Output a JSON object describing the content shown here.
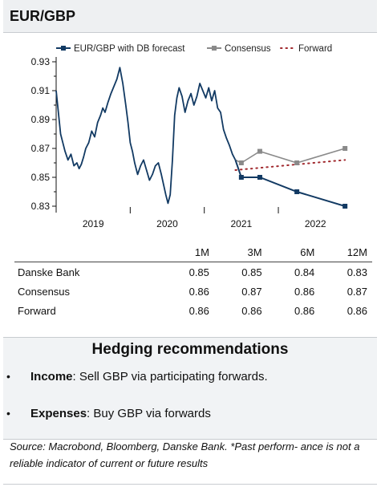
{
  "title": "EUR/GBP",
  "chart_data": {
    "type": "line",
    "legend_position": "top",
    "ylim": [
      0.83,
      0.93
    ],
    "yticks": [
      0.83,
      0.85,
      0.87,
      0.89,
      0.91,
      0.93
    ],
    "ytick_labels": [
      "0.83",
      "0.85",
      "0.87",
      "0.89",
      "0.91",
      "0.93"
    ],
    "xlim": [
      2018.0,
      2022.05
    ],
    "xtick_labels": [
      {
        "label": "2019",
        "x": 2018.5
      },
      {
        "label": "2020",
        "x": 2019.5
      },
      {
        "label": "2021",
        "x": 2020.5
      },
      {
        "label": "2022",
        "x": 2021.5
      }
    ],
    "year_dividers": [
      2019,
      2020,
      2021
    ],
    "grid": false,
    "series": [
      {
        "name": "EUR/GBP with DB forecast",
        "color": "#123a63",
        "history": {
          "x": [
            2018.0,
            2018.03,
            2018.06,
            2018.09,
            2018.12,
            2018.16,
            2018.2,
            2018.24,
            2018.28,
            2018.31,
            2018.34,
            2018.37,
            2018.4,
            2018.44,
            2018.48,
            2018.52,
            2018.56,
            2018.6,
            2018.63,
            2018.66,
            2018.7,
            2018.74,
            2018.78,
            2018.82,
            2018.86,
            2018.9,
            2018.94,
            2018.97,
            2019.0,
            2019.03,
            2019.06,
            2019.1,
            2019.14,
            2019.18,
            2019.22,
            2019.26,
            2019.3,
            2019.34,
            2019.38,
            2019.42,
            2019.45,
            2019.48,
            2019.51,
            2019.54,
            2019.57,
            2019.6,
            2019.63,
            2019.66,
            2019.7,
            2019.74,
            2019.78,
            2019.82,
            2019.86,
            2019.9,
            2019.94,
            2019.98,
            2020.02,
            2020.06,
            2020.1,
            2020.14,
            2020.18,
            2020.22,
            2020.26,
            2020.3,
            2020.34,
            2020.38,
            2020.42
          ],
          "y": [
            0.91,
            0.895,
            0.88,
            0.874,
            0.868,
            0.862,
            0.866,
            0.858,
            0.86,
            0.856,
            0.859,
            0.864,
            0.87,
            0.874,
            0.882,
            0.878,
            0.888,
            0.893,
            0.898,
            0.895,
            0.902,
            0.908,
            0.913,
            0.918,
            0.926,
            0.915,
            0.9,
            0.888,
            0.874,
            0.868,
            0.86,
            0.852,
            0.858,
            0.862,
            0.855,
            0.848,
            0.852,
            0.858,
            0.86,
            0.852,
            0.845,
            0.838,
            0.832,
            0.838,
            0.862,
            0.893,
            0.905,
            0.912,
            0.906,
            0.895,
            0.903,
            0.908,
            0.9,
            0.906,
            0.915,
            0.91,
            0.905,
            0.912,
            0.903,
            0.91,
            0.898,
            0.895,
            0.883,
            0.877,
            0.872,
            0.866,
            0.862
          ]
        },
        "forecast": {
          "x": [
            2020.42,
            2020.5,
            2020.75,
            2021.25,
            2021.9
          ],
          "y": [
            0.862,
            0.85,
            0.85,
            0.84,
            0.83
          ]
        }
      },
      {
        "name": "Consensus",
        "color": "#8a8a8a",
        "x": [
          2020.42,
          2020.5,
          2020.75,
          2021.25,
          2021.9
        ],
        "y": [
          0.862,
          0.86,
          0.868,
          0.86,
          0.87
        ]
      },
      {
        "name": "Forward",
        "color": "#a0282d",
        "x": [
          2020.42,
          2021.9
        ],
        "y": [
          0.855,
          0.862
        ]
      }
    ]
  },
  "table": {
    "columns": [
      "1M",
      "3M",
      "6M",
      "12M"
    ],
    "rows": [
      {
        "label": "Danske Bank",
        "values": [
          "0.85",
          "0.85",
          "0.84",
          "0.83"
        ]
      },
      {
        "label": "Consensus",
        "values": [
          "0.86",
          "0.87",
          "0.86",
          "0.87"
        ]
      },
      {
        "label": "Forward",
        "values": [
          "0.86",
          "0.86",
          "0.86",
          "0.86"
        ]
      }
    ]
  },
  "hedging": {
    "title": "Hedging recommendations",
    "items": [
      {
        "bold": "Income",
        "rest": ": Sell GBP via participating forwards."
      },
      {
        "bold": "Expenses",
        "rest": ": Buy GBP via forwards"
      }
    ]
  },
  "source": "Source: Macrobond, Bloomberg, Danske Bank. *Past perform- ance is not a reliable indicator of current or future results"
}
